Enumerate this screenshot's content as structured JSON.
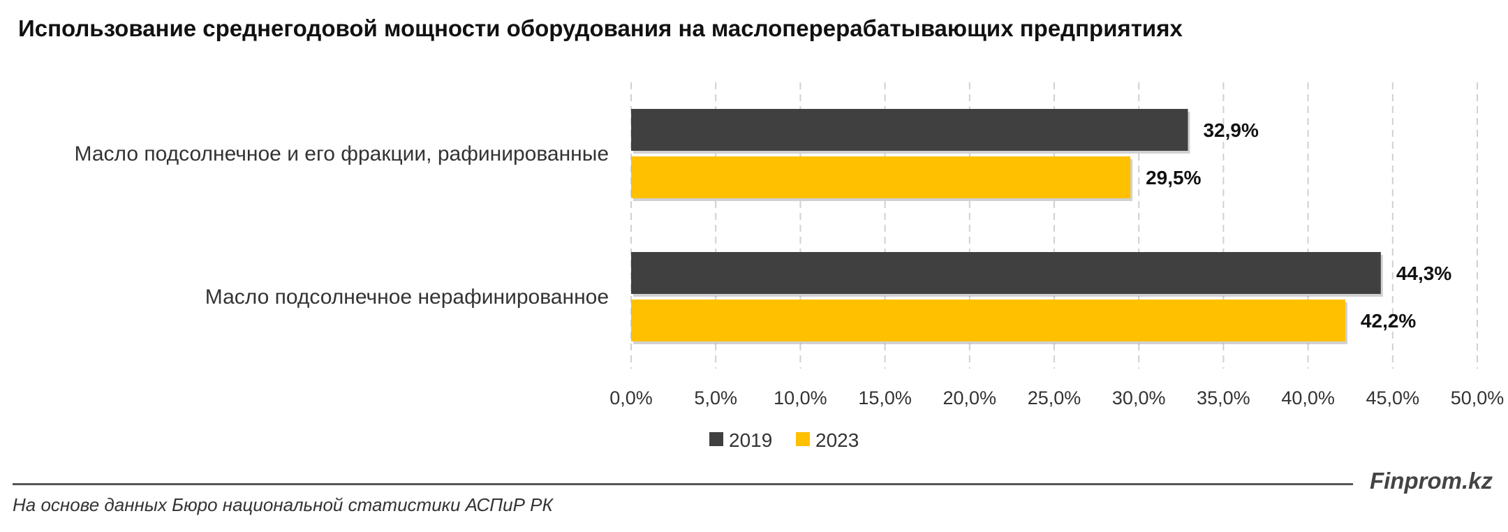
{
  "chart_data": {
    "type": "bar",
    "orientation": "horizontal",
    "title": "Использование среднегодовой мощности оборудования на маслоперерабатывающих предприятиях",
    "categories": [
      "Масло подсолнечное и его фракции, рафинированные",
      "Масло подсолнечное нерафинированное"
    ],
    "series": [
      {
        "name": "2019",
        "color": "#404040",
        "values": [
          32.9,
          44.3
        ],
        "labels": [
          "32,9%",
          "44,3%"
        ]
      },
      {
        "name": "2023",
        "color": "#FFC000",
        "values": [
          29.5,
          42.2
        ],
        "labels": [
          "29,5%",
          "42,2%"
        ]
      }
    ],
    "xlim": [
      0,
      50
    ],
    "xticks": [
      0,
      5,
      10,
      15,
      20,
      25,
      30,
      35,
      40,
      45,
      50
    ],
    "xtick_labels": [
      "0,0%",
      "5,0%",
      "10,0%",
      "15,0%",
      "20,0%",
      "25,0%",
      "30,0%",
      "35,0%",
      "40,0%",
      "45,0%",
      "50,0%"
    ],
    "grid": true,
    "legend": "bottom"
  },
  "footer": {
    "brand": "Finprom.kz",
    "source": "На основе данных Бюро национальной статистики АСПиР РК"
  }
}
